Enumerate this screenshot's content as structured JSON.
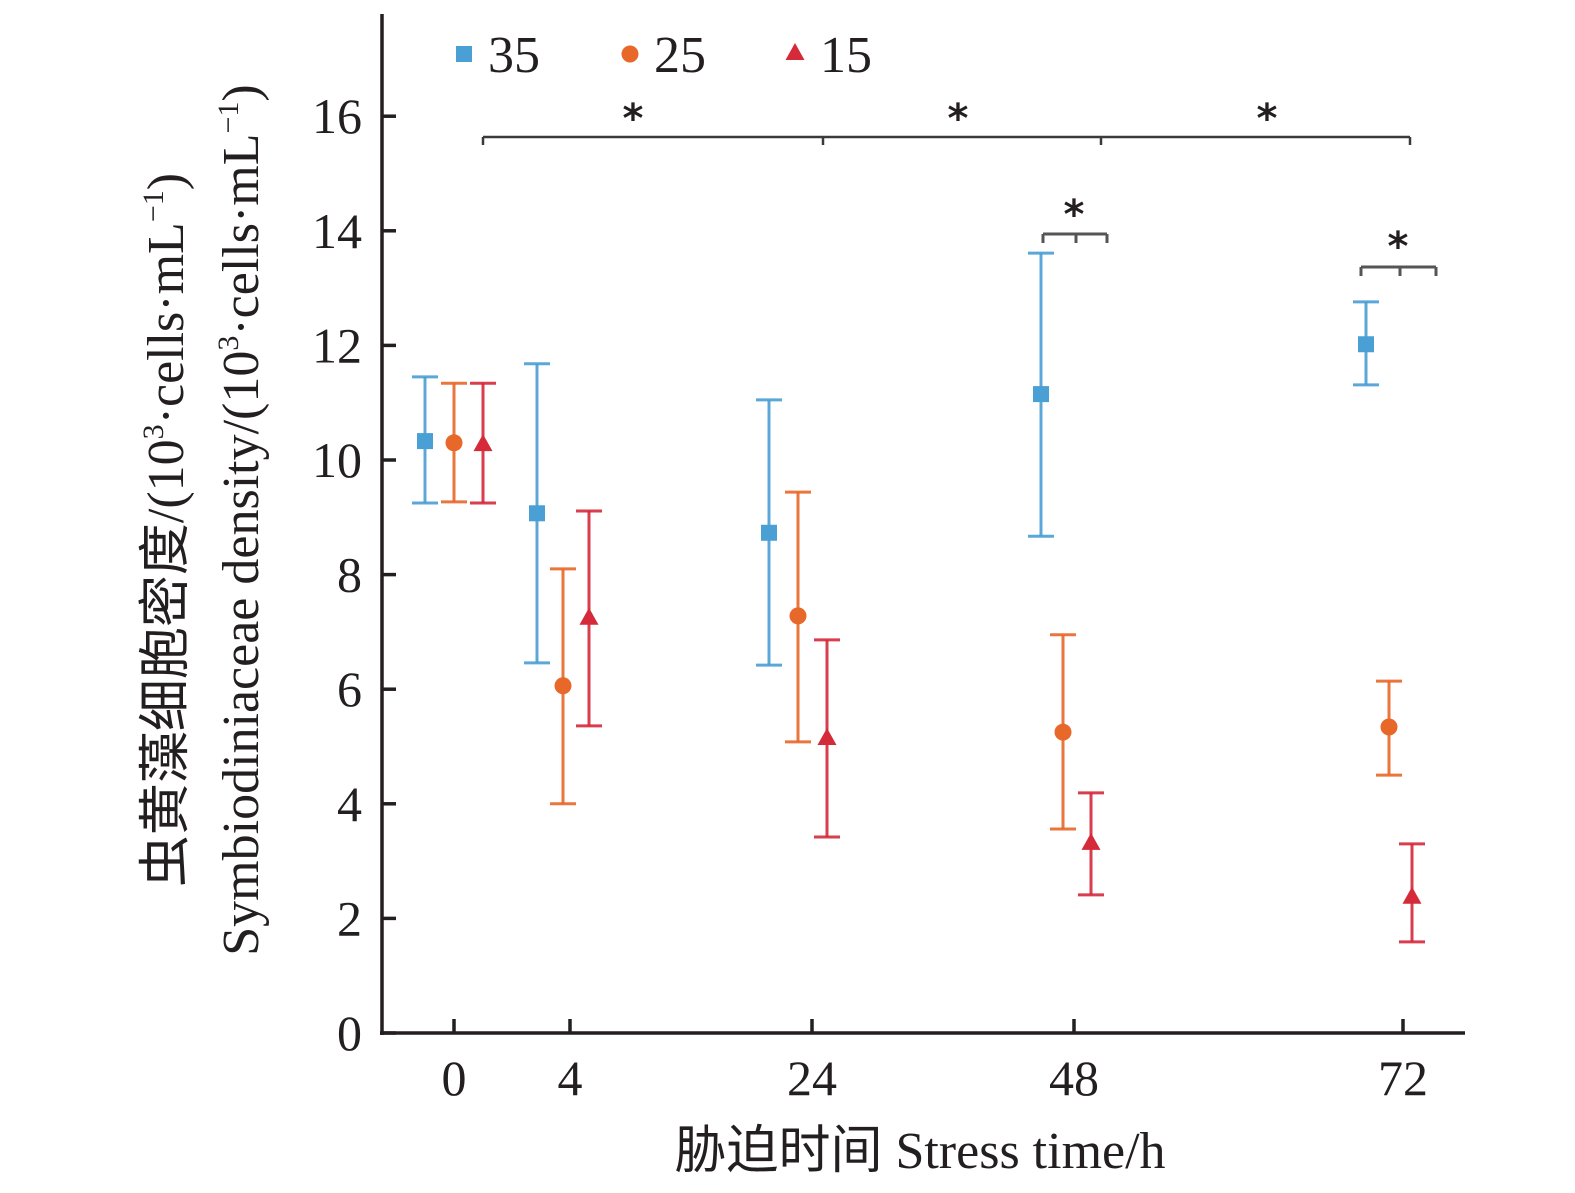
{
  "chart_data": {
    "type": "scatter",
    "subtype": "categorical point plot with error bars",
    "title": "",
    "xlabel": "胁迫时间 Stress time/h",
    "ylabel_cn": "虫黄藻细胞密度/(10³·cells·mL⁻¹)",
    "ylabel_en": "Symbiodiniaceae density/(10³·cells·mL⁻¹)",
    "ylabel_cn_parts": {
      "text": "虫黄藻细胞密度/(10",
      "sup": "3",
      "mid": "·cells·mL",
      "sup2": "−1",
      "end": ")"
    },
    "ylabel_en_parts": {
      "text": "Symbiodiniaceae density/(10",
      "sup": "3",
      "mid": "·cells·mL",
      "sup2": "−1",
      "end": ")"
    },
    "categories": [
      "0",
      "4",
      "24",
      "48",
      "72"
    ],
    "ylim": [
      0,
      18
    ],
    "yticks": [
      0,
      2,
      4,
      6,
      8,
      10,
      12,
      14,
      16
    ],
    "grid": false,
    "legend": {
      "placement": "top-left",
      "orientation": "horizontal"
    },
    "series": [
      {
        "name": "35",
        "marker": "square",
        "color": "#4a9fd4",
        "values": [
          10.33,
          9.07,
          8.73,
          11.15,
          12.02
        ],
        "err_upper": [
          11.45,
          11.68,
          11.05,
          13.61,
          12.76
        ],
        "err_lower": [
          9.25,
          6.46,
          6.42,
          8.67,
          11.31
        ]
      },
      {
        "name": "25",
        "marker": "circle",
        "color": "#e8682a",
        "values": [
          10.3,
          6.06,
          7.28,
          5.25,
          5.34
        ],
        "err_upper": [
          11.34,
          8.1,
          9.44,
          6.95,
          6.14
        ],
        "err_lower": [
          9.27,
          4.0,
          5.08,
          3.56,
          4.5
        ]
      },
      {
        "name": "15",
        "marker": "triangle",
        "color": "#d42a3a",
        "values": [
          10.26,
          7.23,
          5.13,
          3.3,
          2.36
        ],
        "err_upper": [
          11.34,
          9.11,
          6.86,
          4.19,
          3.3
        ],
        "err_lower": [
          9.25,
          5.36,
          3.42,
          2.41,
          1.59
        ]
      }
    ],
    "annotations": {
      "top_brackets": [
        {
          "from": "0",
          "to": "24",
          "label": "*"
        },
        {
          "from": "24",
          "to": "48",
          "label": "*"
        },
        {
          "from": "48",
          "to": "72",
          "label": "*"
        }
      ],
      "local_brackets": [
        {
          "category": "48",
          "label": "*"
        },
        {
          "category": "72",
          "label": "*"
        }
      ]
    }
  }
}
